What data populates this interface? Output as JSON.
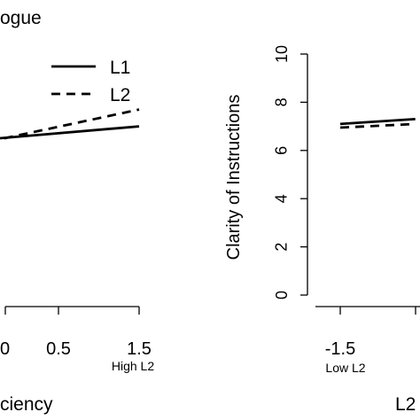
{
  "chart_data": [
    {
      "type": "line",
      "title": "ogue",
      "xlabel": "ciency",
      "ylabel": "",
      "x_ticks": [
        "0",
        "0.5",
        "1.5"
      ],
      "x_tick_sublabel": "High L2",
      "legend": {
        "placement": "top-right",
        "entries": [
          {
            "name": "L1",
            "style": "solid"
          },
          {
            "name": "L2",
            "style": "dashed"
          }
        ]
      },
      "series": [
        {
          "name": "L1",
          "style": "solid",
          "x": [
            -2.0,
            1.5
          ],
          "y": [
            6.0,
            7.0
          ]
        },
        {
          "name": "L2",
          "style": "dashed",
          "x": [
            -2.0,
            1.5
          ],
          "y": [
            5.2,
            7.7
          ]
        }
      ]
    },
    {
      "type": "line",
      "title": "",
      "xlabel": "L2",
      "ylabel": "Clarity of Instructions",
      "ylim": [
        0,
        10
      ],
      "y_ticks": [
        "0",
        "2",
        "4",
        "6",
        "8",
        "10"
      ],
      "x_ticks": [
        "-1.5"
      ],
      "x_tick_sublabel": "Low L2",
      "series": [
        {
          "name": "L1",
          "style": "solid",
          "x": [
            -1.5,
            -0.4
          ],
          "y": [
            7.1,
            7.3
          ]
        },
        {
          "name": "L2",
          "style": "dashed",
          "x": [
            -1.5,
            -0.4
          ],
          "y": [
            6.95,
            7.1
          ]
        }
      ]
    }
  ]
}
